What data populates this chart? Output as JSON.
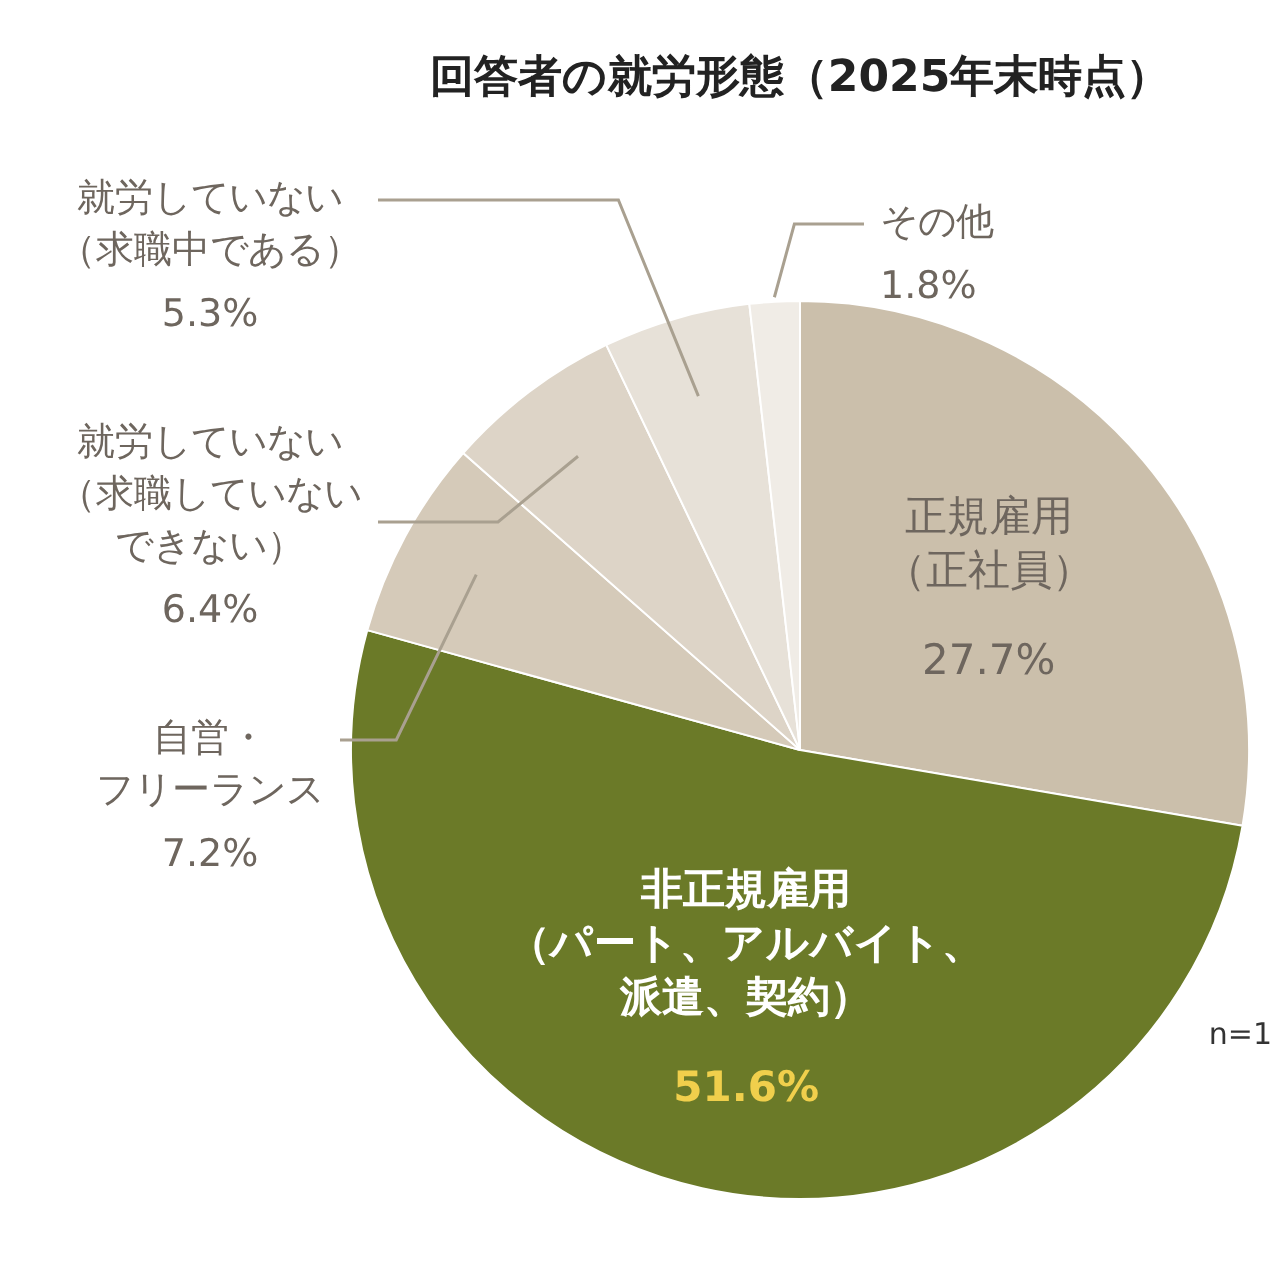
{
  "chart_data": {
    "type": "pie",
    "title": "回答者の就労形態（2025年末時点）",
    "categories": [
      "正規雇用（正社員）",
      "非正規雇用（パート、アルバイト、派遣、契約）",
      "自営・フリーランス",
      "就労していない（求職していないできない）",
      "就労していない（求職中である）",
      "その他"
    ],
    "values": [
      27.7,
      51.6,
      7.2,
      6.4,
      5.3,
      1.8
    ],
    "colors": [
      "#cbbfab",
      "#6b7a28",
      "#d5cab9",
      "#ddd4c7",
      "#e7e1d8",
      "#f0ece6"
    ],
    "value_labels": [
      "27.7%",
      "51.6%",
      "7.2%",
      "6.4%",
      "5.3%",
      "1.8%"
    ],
    "annotations": [
      "n=1"
    ]
  }
}
